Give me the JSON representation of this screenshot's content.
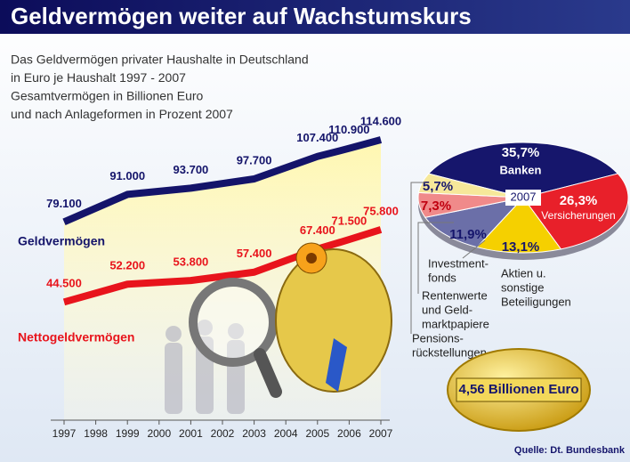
{
  "title": "Geldvermögen weiter auf Wachstumskurs",
  "subtitle_lines": [
    "Das Geldvermögen privater Haushalte in Deutschland",
    "in Euro je Haushalt 1997 - 2007",
    "Gesamtvermögen in Billionen Euro",
    "und nach Anlageformen in Prozent 2007"
  ],
  "total_label": "4,56 Billionen Euro",
  "source": "Quelle: Dt. Bundesbank",
  "chart_data": [
    {
      "type": "line",
      "x": [
        1997,
        1999,
        2001,
        2003,
        2005,
        2006,
        2007
      ],
      "xlim": [
        1997,
        2007
      ],
      "xticks": [
        1997,
        1998,
        1999,
        2000,
        2001,
        2002,
        2003,
        2004,
        2005,
        2006,
        2007
      ],
      "ylim": [
        0,
        130000
      ],
      "series": [
        {
          "name": "Geldvermögen",
          "color": "#14146a",
          "values": [
            79100,
            91000,
            93700,
            97700,
            107400,
            110900,
            114600
          ],
          "value_labels": [
            "79.100",
            "91.000",
            "93.700",
            "97.700",
            "107.400",
            "110.900",
            "114.600"
          ]
        },
        {
          "name": "Nettogeldvermögen",
          "color": "#e8141c",
          "values": [
            44500,
            52200,
            53800,
            57400,
            67400,
            71500,
            75800
          ],
          "value_labels": [
            "44.500",
            "52.200",
            "53.800",
            "57.400",
            "67.400",
            "71.500",
            "75.800"
          ]
        }
      ]
    },
    {
      "type": "pie",
      "center_label": "2007",
      "categories": [
        [
          "Banken"
        ],
        [
          "Versicherungen"
        ],
        [
          "Aktien u.",
          "sonstige",
          "Beteiligungen"
        ],
        [
          "Investment-",
          "fonds"
        ],
        [
          "Rentenwerte",
          "und Geld-",
          "marktpapiere"
        ],
        [
          "Pensions-",
          "rückstellungen"
        ]
      ],
      "values": [
        35.7,
        26.3,
        13.1,
        11.9,
        7.3,
        5.7
      ],
      "value_labels": [
        "35,7%",
        "26,3%",
        "13,1%",
        "11,9%",
        "7,3%",
        "5,7%"
      ],
      "colors": [
        "#16166c",
        "#e8202a",
        "#f5d000",
        "#6b6fa8",
        "#f08a8a",
        "#f6e89a"
      ]
    }
  ]
}
